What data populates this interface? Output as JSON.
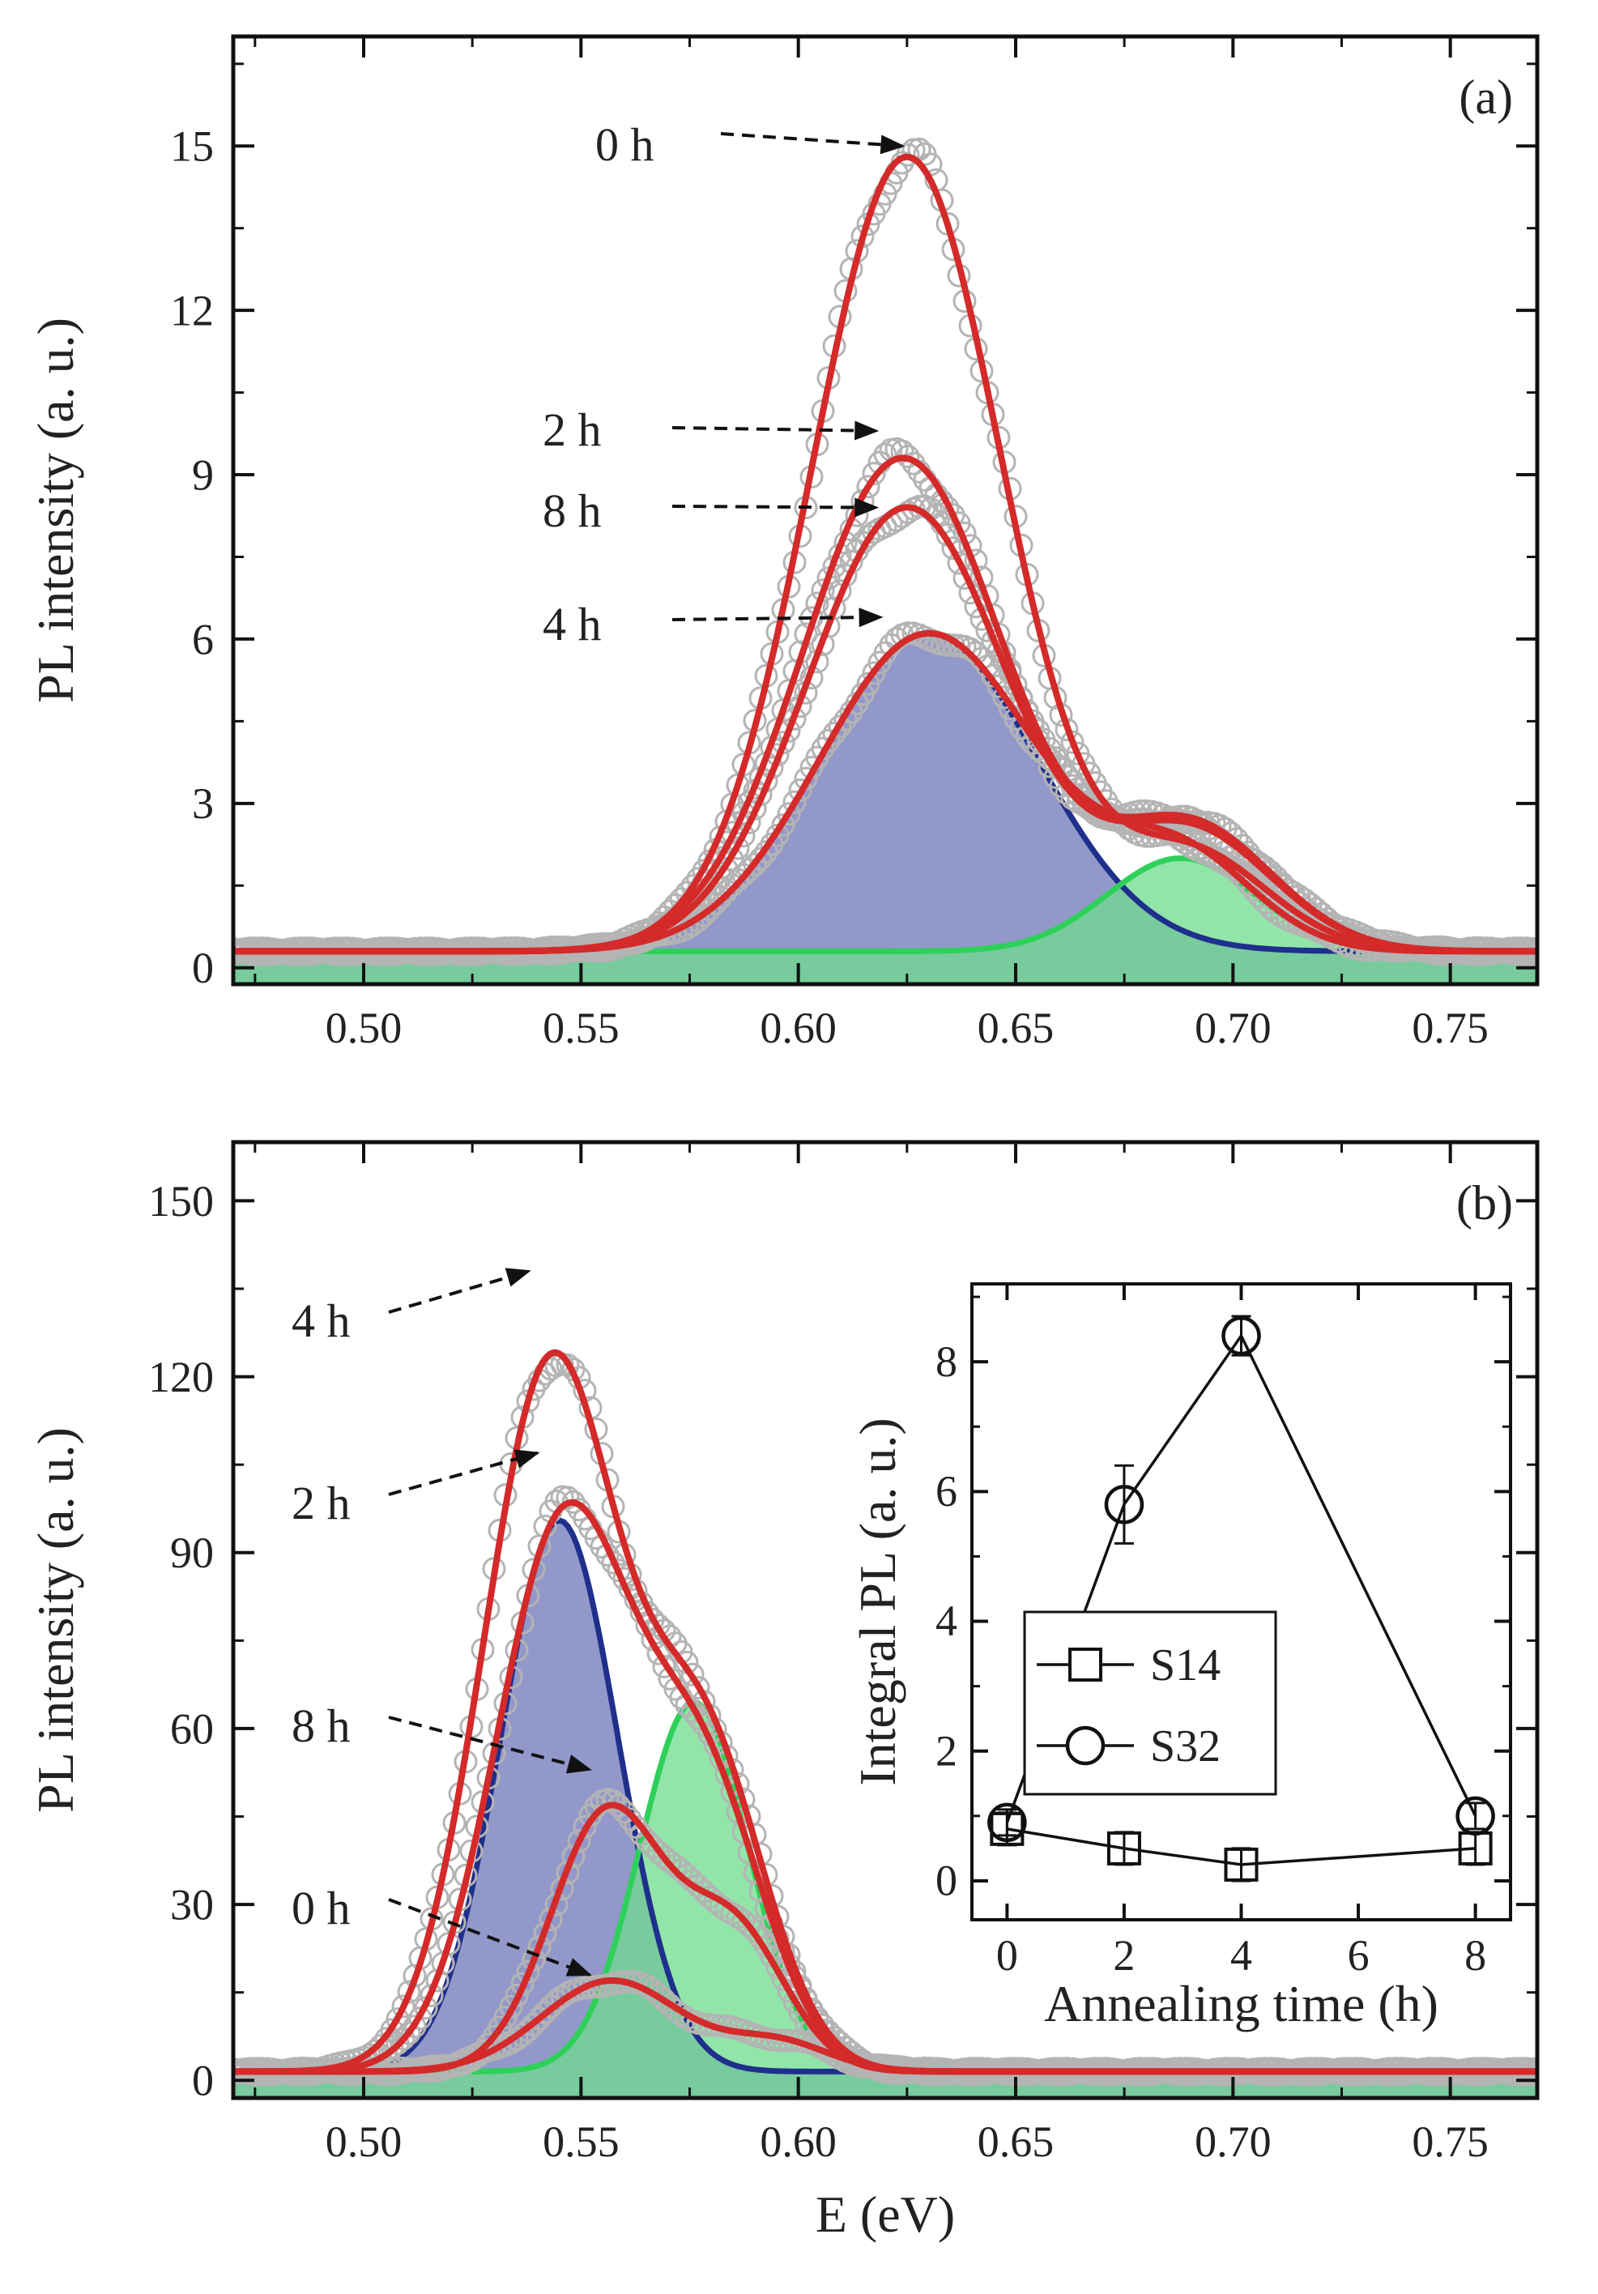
{
  "figure": {
    "x_axis_title": "E (eV)",
    "colors": {
      "fit_line": "#d42a2a",
      "data_marker": "#b4b4b4",
      "blue_fill": "#6f75b8",
      "blue_line": "#1f2f8c",
      "green_fill": "#6edc8c",
      "green_line": "#2fd05a",
      "axis": "#111111"
    }
  },
  "chart_data": [
    {
      "id": "panel-a",
      "type": "line",
      "panel_label": "(a)",
      "xlabel": "E (eV)",
      "ylabel": "PL intensity (a. u.)",
      "xlim": [
        0.47,
        0.77
      ],
      "ylim": [
        -0.3,
        17
      ],
      "xticks": [
        0.5,
        0.55,
        0.6,
        0.65,
        0.7,
        0.75
      ],
      "xtick_labels": [
        "0.50",
        "0.55",
        "0.60",
        "0.65",
        "0.70",
        "0.75"
      ],
      "yticks": [
        0,
        3,
        6,
        9,
        12,
        15
      ],
      "ytick_labels": [
        "0",
        "3",
        "6",
        "9",
        "12",
        "15"
      ],
      "baseline": 0.3,
      "series": [
        {
          "name": "0 h",
          "peaks": [
            {
              "center": 0.625,
              "amp": 14.5,
              "sigma": 0.022
            },
            {
              "center": 0.69,
              "amp": 1.8,
              "sigma": 0.018
            }
          ]
        },
        {
          "name": "2 h",
          "peaks": [
            {
              "center": 0.624,
              "amp": 9.0,
              "sigma": 0.023
            },
            {
              "center": 0.69,
              "amp": 2.3,
              "sigma": 0.019
            }
          ]
        },
        {
          "name": "8 h",
          "peaks": [
            {
              "center": 0.625,
              "amp": 8.1,
              "sigma": 0.023
            },
            {
              "center": 0.69,
              "amp": 2.2,
              "sigma": 0.019
            }
          ]
        },
        {
          "name": "4 h",
          "peaks": [
            {
              "center": 0.63,
              "amp": 5.8,
              "sigma": 0.025
            },
            {
              "center": 0.688,
              "amp": 1.7,
              "sigma": 0.017
            }
          ]
        }
      ],
      "components": [
        {
          "name": "blue",
          "peak": {
            "center": 0.63,
            "amp": 5.8,
            "sigma": 0.025
          }
        },
        {
          "name": "green",
          "peak": {
            "center": 0.688,
            "amp": 1.7,
            "sigma": 0.017
          }
        }
      ],
      "annotations": [
        {
          "text": "0 h",
          "target_x": 0.624,
          "target_y": 15.0
        },
        {
          "text": "2 h",
          "target_x": 0.618,
          "target_y": 9.8
        },
        {
          "text": "8 h",
          "target_x": 0.618,
          "target_y": 8.4
        },
        {
          "text": "4 h",
          "target_x": 0.619,
          "target_y": 6.4
        }
      ]
    },
    {
      "id": "panel-b",
      "type": "line",
      "panel_label": "(b)",
      "xlabel": "E (eV)",
      "ylabel": "PL intensity (a. u.)",
      "xlim": [
        0.47,
        0.77
      ],
      "ylim": [
        -3,
        160
      ],
      "xticks": [
        0.5,
        0.55,
        0.6,
        0.65,
        0.7,
        0.75
      ],
      "xtick_labels": [
        "0.50",
        "0.55",
        "0.60",
        "0.65",
        "0.70",
        "0.75"
      ],
      "yticks": [
        0,
        30,
        60,
        90,
        120,
        150
      ],
      "ytick_labels": [
        "0",
        "30",
        "60",
        "90",
        "120",
        "150"
      ],
      "baseline": 1.5,
      "series": [
        {
          "name": "4 h",
          "peaks": [
            {
              "center": 0.543,
              "amp": 120,
              "sigma": 0.0155
            },
            {
              "center": 0.578,
              "amp": 55,
              "sigma": 0.014
            }
          ]
        },
        {
          "name": "2 h",
          "peaks": [
            {
              "center": 0.546,
              "amp": 93,
              "sigma": 0.0155
            },
            {
              "center": 0.578,
              "amp": 48,
              "sigma": 0.014
            }
          ]
        },
        {
          "name": "8 h",
          "peaks": [
            {
              "center": 0.556,
              "amp": 44,
              "sigma": 0.013
            },
            {
              "center": 0.585,
              "amp": 24,
              "sigma": 0.012
            }
          ]
        },
        {
          "name": "0 h",
          "peaks": [
            {
              "center": 0.557,
              "amp": 15.5,
              "sigma": 0.016
            },
            {
              "center": 0.595,
              "amp": 5,
              "sigma": 0.012
            }
          ]
        }
      ],
      "components": [
        {
          "name": "blue",
          "peak": {
            "center": 0.545,
            "amp": 94,
            "sigma": 0.0135
          }
        },
        {
          "name": "green",
          "peak": {
            "center": 0.576,
            "amp": 63,
            "sigma": 0.0125
          }
        }
      ],
      "annotations": [
        {
          "text": "4 h",
          "target_x": 0.538,
          "target_y": 138
        },
        {
          "text": "2 h",
          "target_x": 0.54,
          "target_y": 107
        },
        {
          "text": "8 h",
          "target_x": 0.552,
          "target_y": 53
        },
        {
          "text": "0 h",
          "target_x": 0.552,
          "target_y": 18
        }
      ]
    },
    {
      "id": "inset",
      "type": "scatter",
      "xlabel": "Annealing time (h)",
      "ylabel": "Integral PL (a. u.)",
      "xlim": [
        -0.6,
        8.6
      ],
      "ylim": [
        -0.6,
        9.2
      ],
      "xticks": [
        0,
        2,
        4,
        6,
        8
      ],
      "xtick_labels": [
        "0",
        "2",
        "4",
        "6",
        "8"
      ],
      "yticks": [
        0,
        2,
        4,
        6,
        8
      ],
      "ytick_labels": [
        "0",
        "2",
        "4",
        "6",
        "8"
      ],
      "legend_position": "lower-left",
      "series": [
        {
          "name": "S14",
          "marker": "square",
          "x": [
            0,
            2,
            4,
            8
          ],
          "y": [
            0.8,
            0.5,
            0.25,
            0.5
          ],
          "err": [
            0.25,
            0.25,
            0.25,
            0.25
          ]
        },
        {
          "name": "S32",
          "marker": "circle",
          "x": [
            0,
            2,
            4,
            8
          ],
          "y": [
            0.9,
            5.8,
            8.4,
            1.0
          ],
          "err": [
            0.2,
            0.6,
            0.3,
            0.2
          ]
        }
      ]
    }
  ]
}
